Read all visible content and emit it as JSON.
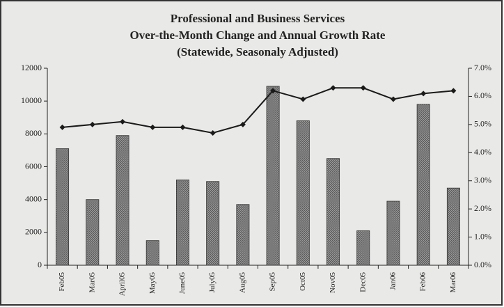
{
  "chart_data": {
    "type": "bar_line",
    "title": [
      "Professional and Business Services",
      "Over-the-Month Change and Annual Growth Rate",
      "(Statewide, Seasonaly Adjusted)"
    ],
    "categories": [
      "Feb05",
      "Mar05",
      "April05",
      "May05",
      "June05",
      "July05",
      "Aug05",
      "Sep05",
      "Oct05",
      "Nov05",
      "Dec05",
      "Jan06",
      "Feb06",
      "Mar06"
    ],
    "series": [
      {
        "type": "bar",
        "color": "#8a8a8a",
        "values": [
          7100,
          4000,
          7900,
          1500,
          5200,
          5100,
          3700,
          10900,
          8800,
          6500,
          2100,
          3900,
          9800,
          4700
        ]
      },
      {
        "type": "line",
        "axis": "y2",
        "color": "#1a1a1a",
        "values": [
          4.9,
          5.0,
          5.1,
          4.9,
          4.9,
          4.7,
          5.0,
          6.2,
          5.9,
          6.3,
          6.3,
          5.9,
          6.1,
          6.2
        ]
      }
    ],
    "ylim": [
      0,
      12000
    ],
    "yticks": [
      0,
      2000,
      4000,
      6000,
      8000,
      10000,
      12000
    ],
    "y2lim": [
      0,
      7
    ],
    "y2ticks": [
      {
        "value": 0,
        "label": "0.0%"
      },
      {
        "value": 1,
        "label": "1.0%"
      },
      {
        "value": 2,
        "label": "2.0%"
      },
      {
        "value": 3,
        "label": "3.0%"
      },
      {
        "value": 4,
        "label": "4.0%"
      },
      {
        "value": 5,
        "label": "5.0%"
      },
      {
        "value": 6,
        "label": "6.0%"
      },
      {
        "value": 7,
        "label": "7.0%"
      }
    ]
  }
}
